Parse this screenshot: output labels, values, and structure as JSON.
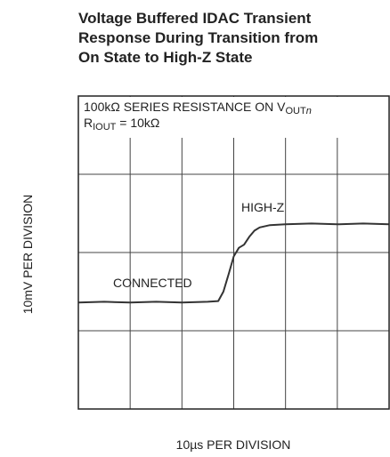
{
  "chart_data": {
    "type": "line",
    "title_lines": [
      "Voltage Buffered IDAC Transient",
      "Response During Transition from",
      "On State to High-Z State"
    ],
    "ylabel": "10mV PER DIVISION",
    "xlabel": "10µs PER DIVISION",
    "resistance_note": {
      "text": "100kΩ SERIES RESISTANCE ON V",
      "subscript": "OUT",
      "italic": "n"
    },
    "rout_note": {
      "prefix": "R",
      "subscript": "IOUT",
      "text": " = 10kΩ"
    },
    "high_label": "HIGH-Z",
    "low_label": "CONNECTED",
    "xlim": [
      0,
      6
    ],
    "ylim": [
      0,
      4
    ],
    "xticks": [
      0,
      1,
      2,
      3,
      4,
      5,
      6
    ],
    "yticks": [
      0,
      1,
      2,
      3,
      4
    ],
    "grid": true,
    "color": "#333333",
    "x": [
      0,
      0.5,
      1,
      1.5,
      2,
      2.5,
      2.7,
      2.8,
      2.9,
      3.0,
      3.1,
      3.2,
      3.3,
      3.4,
      3.5,
      3.7,
      4,
      4.5,
      5,
      5.5,
      6
    ],
    "values": [
      1.36,
      1.37,
      1.36,
      1.37,
      1.36,
      1.37,
      1.38,
      1.5,
      1.72,
      1.95,
      2.06,
      2.1,
      2.2,
      2.28,
      2.32,
      2.35,
      2.36,
      2.37,
      2.36,
      2.37,
      2.36
    ]
  }
}
